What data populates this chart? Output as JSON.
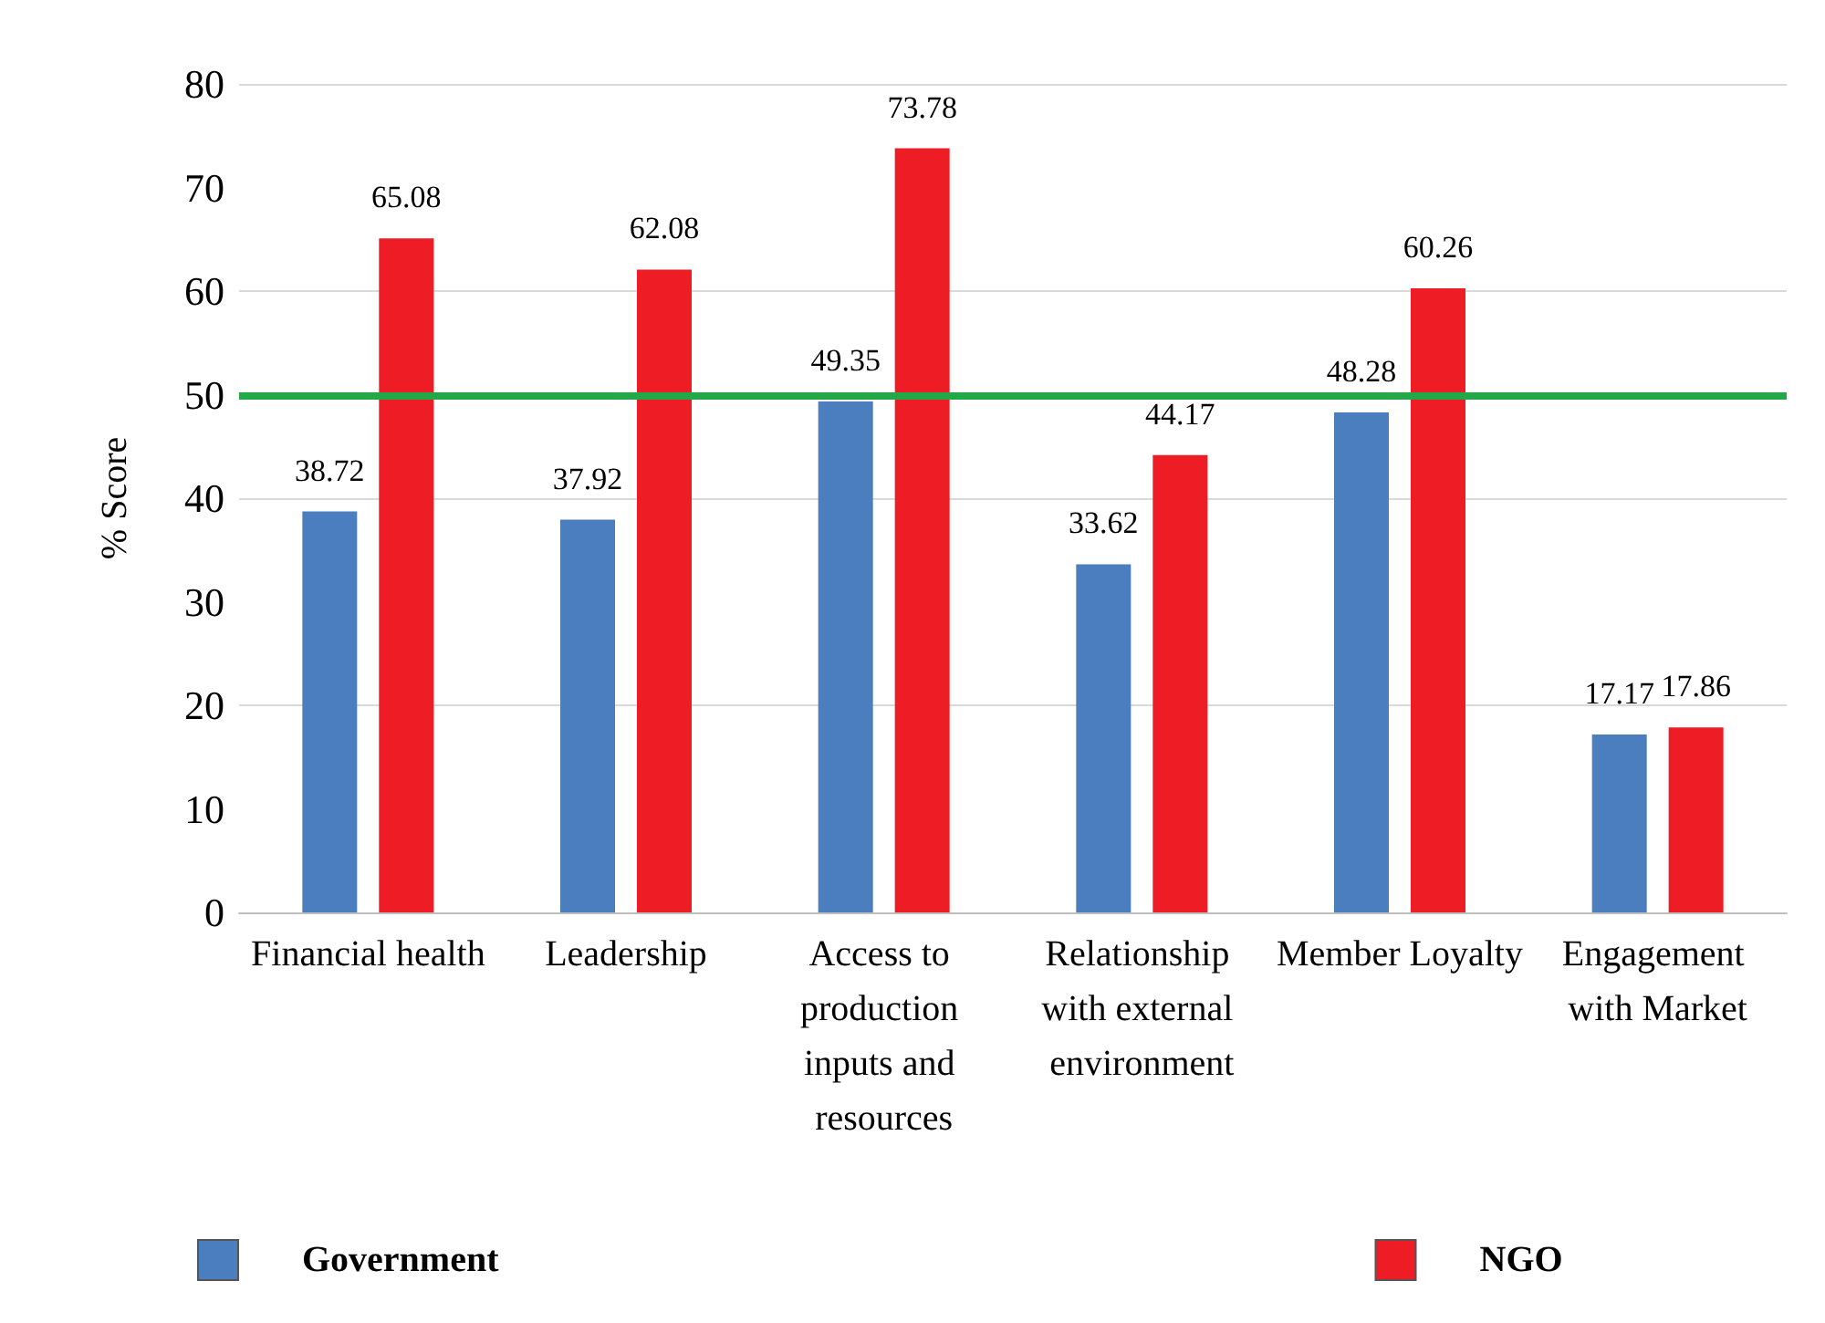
{
  "chart_data": {
    "type": "bar",
    "ylabel": "% Score",
    "categories": [
      "Financial health",
      "Leadership",
      "Access to production inputs and resources",
      "Relationship with external environment",
      "Member Loyalty",
      "Engagement with Market"
    ],
    "series": [
      {
        "name": "Government",
        "color": "#4a7ebf",
        "values": [
          38.72,
          37.92,
          49.35,
          33.62,
          48.28,
          17.17
        ]
      },
      {
        "name": "NGO",
        "color": "#ee1c25",
        "values": [
          65.08,
          62.08,
          73.78,
          44.17,
          60.26,
          17.86
        ]
      }
    ],
    "ylim": [
      0,
      80
    ],
    "yticks": [
      0,
      10,
      20,
      30,
      40,
      50,
      60,
      70,
      80
    ],
    "grid": "y",
    "legend": "bottom",
    "data_labels": true,
    "ref_lines": [
      {
        "axis": "y",
        "value": 50,
        "color": "#22a846"
      }
    ]
  }
}
